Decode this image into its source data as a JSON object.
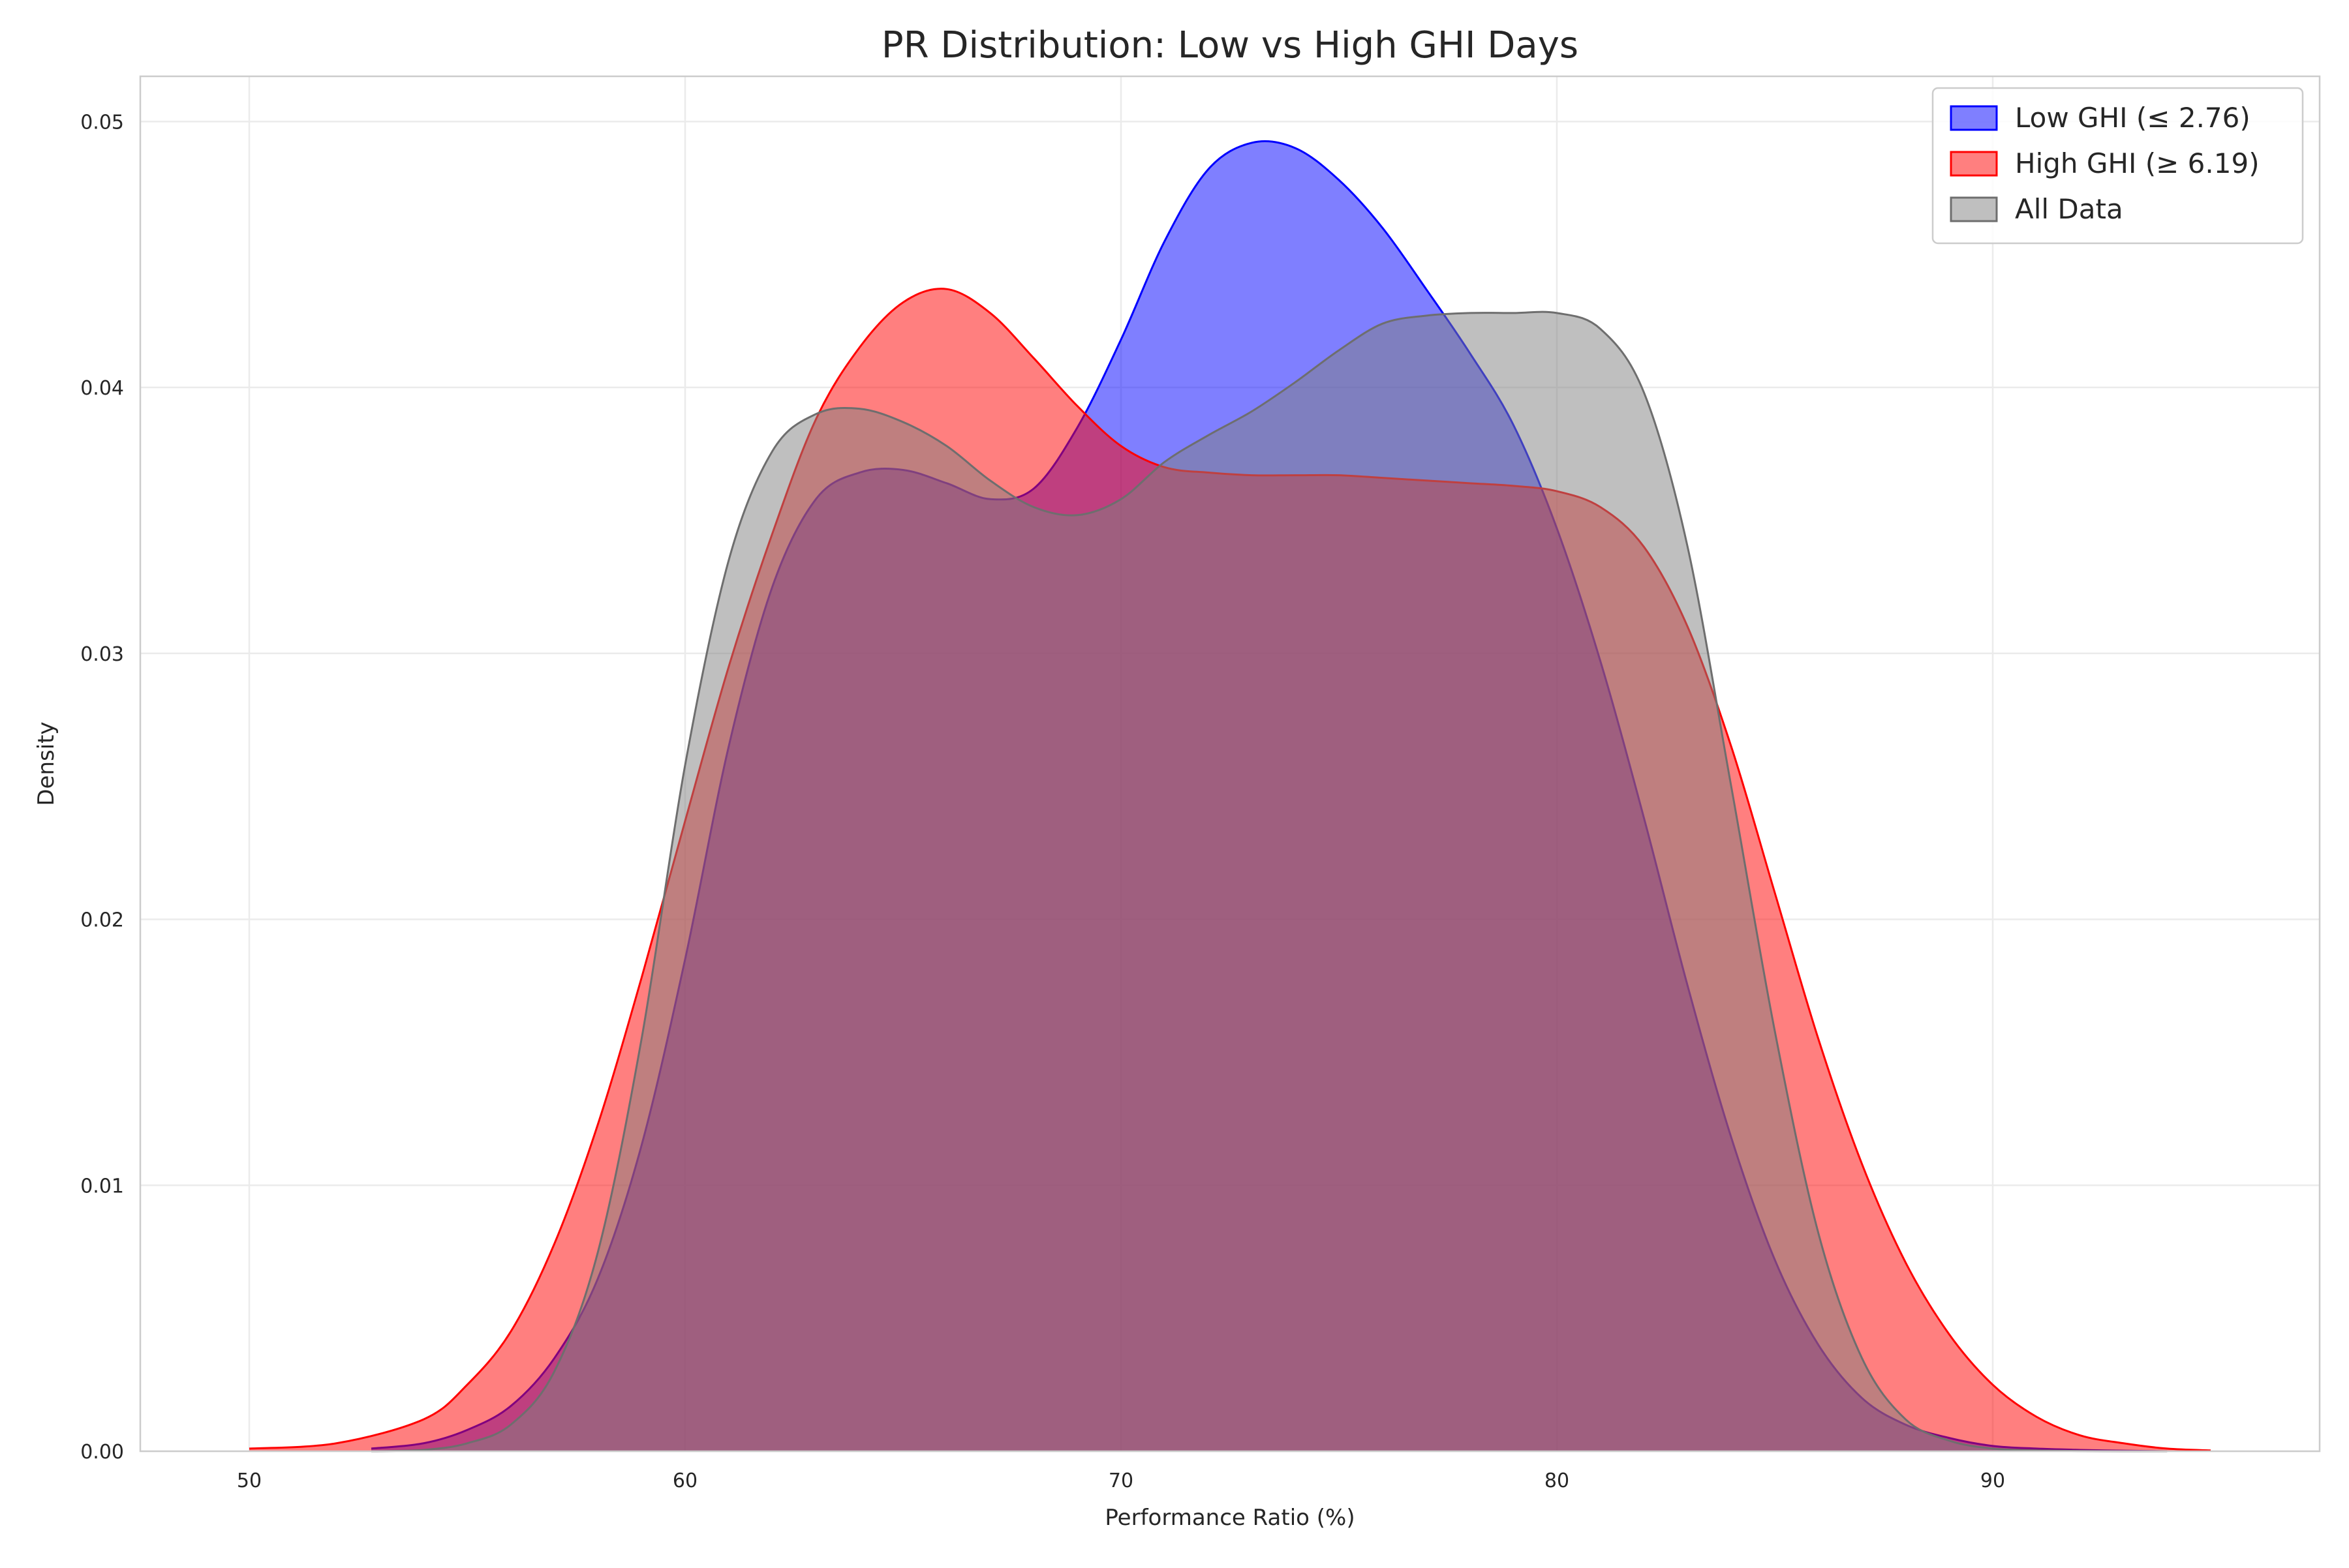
{
  "chart_data": {
    "type": "area",
    "title": "PR Distribution: Low vs High GHI Days",
    "xlabel": "Performance Ratio (%)",
    "ylabel": "Density",
    "xlim": [
      47.5,
      97.5
    ],
    "ylim": [
      0,
      0.0517
    ],
    "x_ticks": [
      50,
      60,
      70,
      80,
      90
    ],
    "y_ticks": [
      0.0,
      0.01,
      0.02,
      0.03,
      0.04,
      0.05
    ],
    "x_tick_labels": [
      "50",
      "60",
      "70",
      "80",
      "90"
    ],
    "y_tick_labels": [
      "0.00",
      "0.01",
      "0.02",
      "0.03",
      "0.04",
      "0.05"
    ],
    "grid": true,
    "legend_position": "top-right",
    "series": [
      {
        "name": "Low GHI (≤ 2.76)",
        "fill": "#0000ff",
        "stroke": "#0000ff",
        "x": [
          52.8,
          54,
          55,
          56,
          57,
          58,
          59,
          60,
          61,
          62,
          63,
          64,
          65,
          66,
          67,
          68,
          69,
          70,
          71,
          72,
          73,
          74,
          75,
          76,
          77,
          78,
          79,
          80,
          81,
          82,
          83,
          84,
          85,
          86,
          87,
          88,
          89,
          90,
          91,
          92,
          93,
          94
        ],
        "y": [
          0.0001,
          0.0003,
          0.0008,
          0.0017,
          0.0035,
          0.0065,
          0.0115,
          0.0185,
          0.0265,
          0.0325,
          0.0358,
          0.0368,
          0.0369,
          0.0364,
          0.0358,
          0.0362,
          0.0385,
          0.0418,
          0.0455,
          0.0482,
          0.0492,
          0.049,
          0.0478,
          0.046,
          0.0437,
          0.0413,
          0.0386,
          0.0347,
          0.0297,
          0.0238,
          0.0175,
          0.0118,
          0.0072,
          0.004,
          0.002,
          0.001,
          0.0005,
          0.0002,
          0.0001,
          5e-05,
          2e-05,
          0
        ]
      },
      {
        "name": "High GHI (≥ 6.19)",
        "fill": "#ff0000",
        "stroke": "#ff0000",
        "x": [
          50,
          52,
          54,
          55,
          56,
          57,
          58,
          59,
          60,
          61,
          62,
          63,
          64,
          65,
          66,
          67,
          68,
          69,
          70,
          71,
          72,
          73,
          74,
          75,
          76,
          77,
          78,
          79,
          80,
          81,
          82,
          83,
          84,
          85,
          86,
          87,
          88,
          89,
          90,
          91,
          92,
          93,
          94,
          95
        ],
        "y": [
          0.0001,
          0.0003,
          0.0012,
          0.0025,
          0.0045,
          0.0078,
          0.0123,
          0.0178,
          0.0237,
          0.0295,
          0.0345,
          0.0388,
          0.0415,
          0.0432,
          0.0437,
          0.0428,
          0.0411,
          0.0393,
          0.0378,
          0.037,
          0.0368,
          0.0367,
          0.0367,
          0.0367,
          0.0366,
          0.0365,
          0.0364,
          0.0363,
          0.0361,
          0.0355,
          0.034,
          0.031,
          0.0265,
          0.021,
          0.0155,
          0.0108,
          0.0071,
          0.0044,
          0.0025,
          0.0013,
          0.0006,
          0.0003,
          0.0001,
          3e-05
        ]
      },
      {
        "name": "All Data",
        "fill": "#808080",
        "stroke": "#6e6e6e",
        "x": [
          52.8,
          54,
          55,
          56,
          57,
          58,
          59,
          60,
          61,
          62,
          63,
          64,
          65,
          66,
          67,
          68,
          69,
          70,
          71,
          72,
          73,
          74,
          75,
          76,
          77,
          78,
          79,
          80,
          81,
          82,
          83,
          84,
          85,
          86,
          87,
          88,
          89,
          90,
          91,
          92,
          93,
          94
        ],
        "y": [
          0,
          5e-05,
          0.0003,
          0.001,
          0.003,
          0.0075,
          0.0155,
          0.0258,
          0.0335,
          0.0376,
          0.039,
          0.0392,
          0.0387,
          0.0378,
          0.0365,
          0.0355,
          0.0352,
          0.0358,
          0.0372,
          0.0382,
          0.0391,
          0.0402,
          0.0414,
          0.0424,
          0.0427,
          0.0428,
          0.0428,
          0.0428,
          0.0422,
          0.0398,
          0.034,
          0.025,
          0.0158,
          0.0082,
          0.0035,
          0.0012,
          0.0004,
          0.0001,
          3e-05,
          1e-05,
          0,
          0
        ]
      }
    ]
  }
}
